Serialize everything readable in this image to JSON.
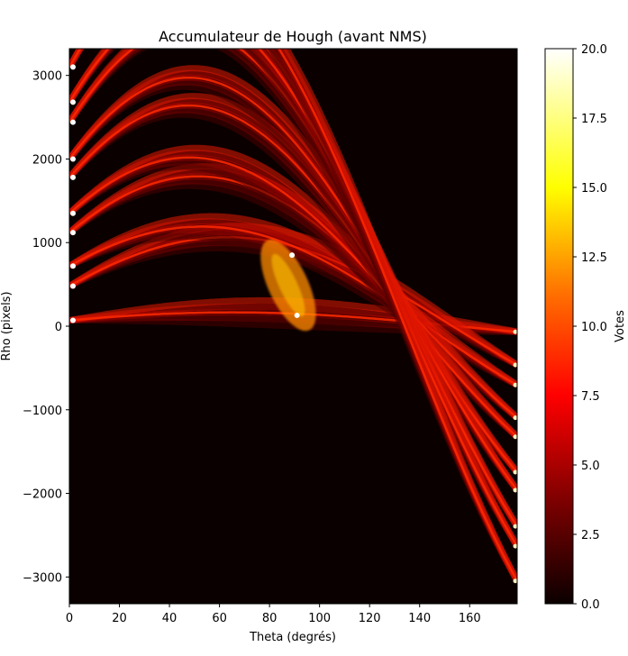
{
  "chart_data": {
    "type": "heatmap",
    "title": "Accumulateur de Hough (avant NMS)",
    "xlabel": "Theta (degrés)",
    "ylabel": "Rho (pixels)",
    "xlim": [
      0,
      179
    ],
    "ylim": [
      -3320,
      3320
    ],
    "x_ticks": [
      0,
      20,
      40,
      60,
      80,
      100,
      120,
      140,
      160
    ],
    "y_ticks": [
      3000,
      2000,
      1000,
      0,
      -1000,
      -2000,
      -3000
    ],
    "y_tick_labels": [
      "3000",
      "2000",
      "1000",
      "0",
      "−1000",
      "−2000",
      "−3000"
    ],
    "colormap": "hot",
    "colorbar": {
      "label": "Votes",
      "min": 0,
      "max": 20,
      "ticks": [
        0.0,
        2.5,
        5.0,
        7.5,
        10.0,
        12.5,
        15.0,
        17.5,
        20.0
      ],
      "tick_labels": [
        "0.0",
        "2.5",
        "5.0",
        "7.5",
        "10.0",
        "12.5",
        "15.0",
        "17.5",
        "20.0"
      ]
    },
    "sinusoid_bundles": [
      {
        "rho_at_0": 70,
        "rho_at_90": 150
      },
      {
        "rho_at_0": 480,
        "rho_at_90": 950
      },
      {
        "rho_at_0": 720,
        "rho_at_90": 950
      },
      {
        "rho_at_0": 1120,
        "rho_at_90": 1400
      },
      {
        "rho_at_0": 1350,
        "rho_at_90": 1500
      },
      {
        "rho_at_0": 1780,
        "rho_at_90": 1950
      },
      {
        "rho_at_0": 2000,
        "rho_at_90": 2200
      },
      {
        "rho_at_0": 2440,
        "rho_at_90": 2600
      },
      {
        "rho_at_0": 2680,
        "rho_at_90": 2750
      },
      {
        "rho_at_0": 3100,
        "rho_at_90": 3000
      }
    ],
    "peak_cluster": {
      "theta_range": [
        80,
        95
      ],
      "rho_range": [
        130,
        850
      ]
    }
  }
}
